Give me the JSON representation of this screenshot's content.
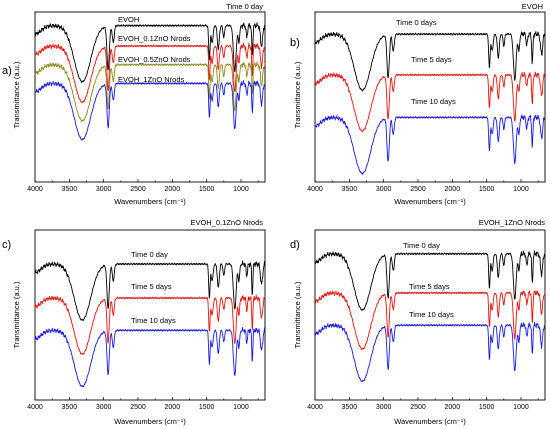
{
  "chart_data": [
    {
      "id": "a",
      "type": "line",
      "panel_label": "a)",
      "title": "Time 0 day",
      "xlabel": "Wavenumbers (cm⁻¹)",
      "ylabel": "Transmittance (a.u.)",
      "xlim": [
        4000,
        650
      ],
      "x_ticks": [
        4000,
        3500,
        3000,
        2500,
        2000,
        1500,
        1000
      ],
      "series": [
        {
          "name": "EVOH",
          "color": "#000000",
          "offset": 0.92
        },
        {
          "name": "EVOH_0.1ZnO Nrods",
          "color": "#e8140f",
          "offset": 0.8
        },
        {
          "name": "EVOH_0.5ZnO Nrods",
          "color": "#8b8b1a",
          "offset": 0.69
        },
        {
          "name": "EVOH_1ZnO Nrods",
          "color": "#1a1ae6",
          "offset": 0.58
        }
      ]
    },
    {
      "id": "b",
      "type": "line",
      "panel_label": "b)",
      "title": "EVOH",
      "xlabel": "Wavenumbers (cm⁻¹)",
      "ylabel": "Transmittance (a.u.)",
      "xlim": [
        4000,
        650
      ],
      "x_ticks": [
        4000,
        3500,
        3000,
        2500,
        2000,
        1500,
        1000
      ],
      "series": [
        {
          "name": "Time 0 days",
          "color": "#000000",
          "offset": 0.87
        },
        {
          "name": "Time 5 days",
          "color": "#e8140f",
          "offset": 0.63
        },
        {
          "name": "Time 10 days",
          "color": "#1a1ae6",
          "offset": 0.38
        }
      ]
    },
    {
      "id": "c",
      "type": "line",
      "panel_label": "c)",
      "title": "EVOH_0.1ZnO Nrods",
      "xlabel": "Wavenumbers (cm⁻¹)",
      "ylabel": "Transmittance (a.u.)",
      "xlim": [
        4000,
        650
      ],
      "x_ticks": [
        4000,
        3500,
        3000,
        2500,
        2000,
        1500,
        1000
      ],
      "series": [
        {
          "name": "Time 0 day",
          "color": "#000000",
          "offset": 0.8
        },
        {
          "name": "Time 5 days",
          "color": "#e8140f",
          "offset": 0.6
        },
        {
          "name": "Time 10 days",
          "color": "#1a1ae6",
          "offset": 0.41
        }
      ]
    },
    {
      "id": "d",
      "type": "line",
      "panel_label": "d)",
      "title": "EVOH_1ZnO Nrods",
      "xlabel": "Wavenumbers (cm⁻¹)",
      "ylabel": "Transmittance (a.u.)",
      "xlim": [
        4000,
        650
      ],
      "x_ticks": [
        4000,
        3500,
        3000,
        2500,
        2000,
        1500,
        1000
      ],
      "series": [
        {
          "name": "Time 0 day",
          "color": "#000000",
          "offset": 0.86
        },
        {
          "name": "Time 5 days",
          "color": "#e8140f",
          "offset": 0.63
        },
        {
          "name": "Time 10 days",
          "color": "#1a1ae6",
          "offset": 0.44
        }
      ]
    }
  ]
}
